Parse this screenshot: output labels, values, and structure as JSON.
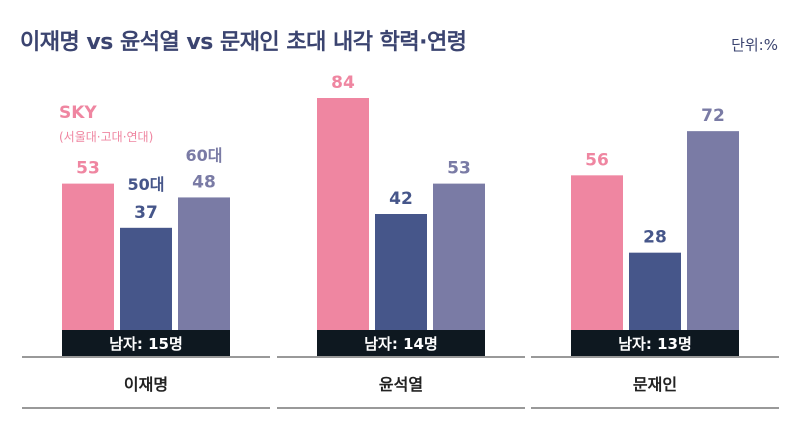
{
  "title": "이재명 vs 윤석열 vs 문재인 초대 내각 학력·연령",
  "unit": "단위:%",
  "colors": {
    "sky": "#ef86a1",
    "age50": "#46568a",
    "age60": "#7a7ba5",
    "footer_bar": "#0e1820",
    "footer_text": "#ffffff",
    "text_dark": "#3b4470",
    "axis_line": "#333333"
  },
  "chart_data": {
    "type": "bar",
    "categories": [
      "이재명",
      "윤석열",
      "문재인"
    ],
    "series": [
      {
        "name": "SKY",
        "values": [
          53,
          84,
          56
        ]
      },
      {
        "name": "50대",
        "values": [
          37,
          42,
          28
        ]
      },
      {
        "name": "60대",
        "values": [
          48,
          53,
          72
        ]
      }
    ],
    "series_legend": {
      "sky_label": "SKY",
      "sky_sub": "(서울대·고대·연대)",
      "age50_label": "50대",
      "age60_label": "60대"
    },
    "male_labels": [
      "남자: 15명",
      "남자: 14명",
      "남자: 13명"
    ],
    "ylim": [
      0,
      90
    ]
  }
}
